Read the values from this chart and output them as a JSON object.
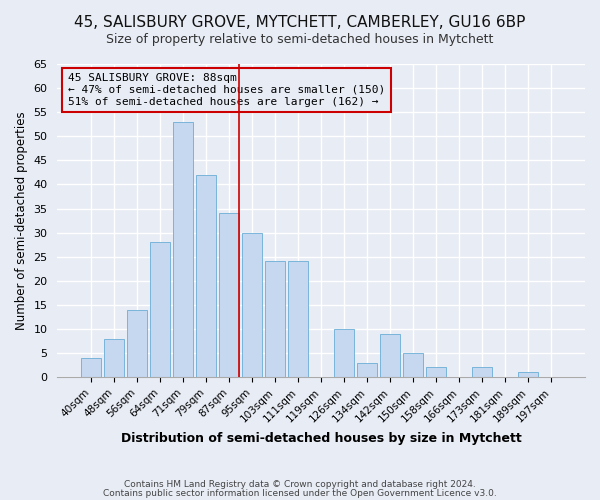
{
  "title1": "45, SALISBURY GROVE, MYTCHETT, CAMBERLEY, GU16 6BP",
  "title2": "Size of property relative to semi-detached houses in Mytchett",
  "xlabel": "Distribution of semi-detached houses by size in Mytchett",
  "ylabel": "Number of semi-detached properties",
  "footer1": "Contains HM Land Registry data © Crown copyright and database right 2024.",
  "footer2": "Contains public sector information licensed under the Open Government Licence v3.0.",
  "bar_labels": [
    "40sqm",
    "48sqm",
    "56sqm",
    "64sqm",
    "71sqm",
    "79sqm",
    "87sqm",
    "95sqm",
    "103sqm",
    "111sqm",
    "119sqm",
    "126sqm",
    "134sqm",
    "142sqm",
    "150sqm",
    "158sqm",
    "166sqm",
    "173sqm",
    "181sqm",
    "189sqm",
    "197sqm"
  ],
  "bar_values": [
    4,
    8,
    14,
    28,
    53,
    42,
    34,
    30,
    24,
    24,
    0,
    10,
    3,
    9,
    5,
    2,
    0,
    2,
    0,
    1,
    0
  ],
  "highlight_index": 6,
  "bar_color_normal": "#c5d8f0",
  "bar_edge_color": "#6aaed6",
  "red_line_color": "#cc0000",
  "annotation_title": "45 SALISBURY GROVE: 88sqm",
  "annotation_line1": "← 47% of semi-detached houses are smaller (150)",
  "annotation_line2": "51% of semi-detached houses are larger (162) →",
  "annotation_box_edge": "#cc0000",
  "annotation_bg": "#e8ecf5",
  "ylim": [
    0,
    65
  ],
  "yticks": [
    0,
    5,
    10,
    15,
    20,
    25,
    30,
    35,
    40,
    45,
    50,
    55,
    60,
    65
  ],
  "bg_color": "#e8ecf5",
  "grid_color": "#ffffff",
  "title1_fontsize": 11,
  "title2_fontsize": 9
}
